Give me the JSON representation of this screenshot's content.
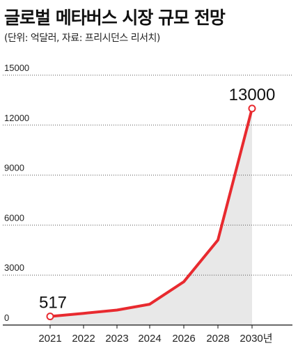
{
  "chart_data": {
    "type": "area",
    "title": "글로벌 메타버스 시장 규모 전망",
    "subtitle": "(단위: 억달러, 자료: 프리시던스 리서치)",
    "x": [
      "2021",
      "2022",
      "2023",
      "2024",
      "2026",
      "2028",
      "2030년"
    ],
    "values": [
      517,
      700,
      900,
      1250,
      2600,
      5100,
      13000
    ],
    "ylim": [
      0,
      15000
    ],
    "yticks": [
      "0",
      "3000",
      "6000",
      "9000",
      "12000",
      "15000"
    ],
    "data_labels": [
      {
        "index": 0,
        "text": "517"
      },
      {
        "index": 6,
        "text": "13000"
      }
    ],
    "grid": true,
    "line_color": "#e82a2f",
    "fill_color": "#e8e8e8",
    "grid_color": "#555555"
  }
}
